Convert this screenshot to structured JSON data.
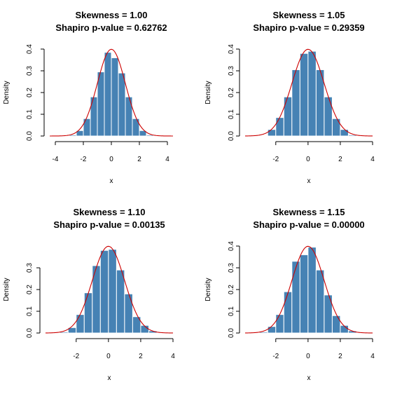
{
  "colors": {
    "bar_fill": "#4682b4",
    "bar_border": "#ffffff",
    "curve": "#cc0000",
    "axis": "#000000"
  },
  "chart_data": [
    {
      "type": "bar",
      "title": "Skewness = 1.00",
      "subtitle": "Shapiro p-value = 0.62762",
      "xlabel": "x",
      "ylabel": "Density",
      "xlim": [
        -4.4,
        4.4
      ],
      "ylim": [
        0,
        0.4
      ],
      "xticks": [
        -4,
        -2,
        0,
        2,
        4
      ],
      "yticks": [
        0.0,
        0.1,
        0.2,
        0.3,
        0.4
      ],
      "bin_edges": [
        -3.0,
        -2.5,
        -2.0,
        -1.5,
        -1.0,
        -0.5,
        0.0,
        0.5,
        1.0,
        1.5,
        2.0,
        2.5,
        3.0
      ],
      "values": [
        0.005,
        0.025,
        0.08,
        0.18,
        0.295,
        0.385,
        0.36,
        0.29,
        0.18,
        0.08,
        0.025,
        0.005
      ],
      "curve": "normal density (mean 0, sd 1)"
    },
    {
      "type": "bar",
      "title": "Skewness = 1.05",
      "subtitle": "Shapiro p-value = 0.29359",
      "xlabel": "x",
      "ylabel": "Density",
      "xlim": [
        -3.9,
        4.0
      ],
      "ylim": [
        0,
        0.4
      ],
      "xticks": [
        -2,
        0,
        2,
        4
      ],
      "yticks": [
        0.0,
        0.1,
        0.2,
        0.3,
        0.4
      ],
      "bin_edges": [
        -3.0,
        -2.5,
        -2.0,
        -1.5,
        -1.0,
        -0.5,
        0.0,
        0.5,
        1.0,
        1.5,
        2.0,
        2.5,
        3.0
      ],
      "values": [
        0.0,
        0.03,
        0.085,
        0.18,
        0.305,
        0.38,
        0.39,
        0.305,
        0.18,
        0.08,
        0.03,
        0.005
      ],
      "curve": "normal density (mean 0, sd 1)"
    },
    {
      "type": "bar",
      "title": "Skewness = 1.10",
      "subtitle": "Shapiro p-value = 0.00135",
      "xlabel": "x",
      "ylabel": "Density",
      "xlim": [
        -3.9,
        4.0
      ],
      "ylim": [
        0,
        0.4
      ],
      "xticks": [
        -2,
        0,
        2,
        4
      ],
      "yticks": [
        0.0,
        0.1,
        0.2,
        0.3
      ],
      "bin_edges": [
        -3.0,
        -2.5,
        -2.0,
        -1.5,
        -1.0,
        -0.5,
        0.0,
        0.5,
        1.0,
        1.5,
        2.0,
        2.5,
        3.0
      ],
      "values": [
        0.005,
        0.025,
        0.085,
        0.185,
        0.31,
        0.38,
        0.385,
        0.29,
        0.18,
        0.075,
        0.035,
        0.01
      ],
      "curve": "normal density (mean 0, sd 1)"
    },
    {
      "type": "bar",
      "title": "Skewness = 1.15",
      "subtitle": "Shapiro p-value = 0.00000",
      "xlabel": "x",
      "ylabel": "Density",
      "xlim": [
        -3.9,
        4.0
      ],
      "ylim": [
        0,
        0.4
      ],
      "xticks": [
        -2,
        0,
        2,
        4
      ],
      "yticks": [
        0.0,
        0.1,
        0.2,
        0.3,
        0.4
      ],
      "bin_edges": [
        -3.0,
        -2.5,
        -2.0,
        -1.5,
        -1.0,
        -0.5,
        0.0,
        0.5,
        1.0,
        1.5,
        2.0,
        2.5,
        3.0
      ],
      "values": [
        0.005,
        0.03,
        0.085,
        0.19,
        0.33,
        0.36,
        0.395,
        0.29,
        0.175,
        0.08,
        0.035,
        0.01
      ],
      "curve": "normal density (mean 0, sd 1)"
    }
  ]
}
